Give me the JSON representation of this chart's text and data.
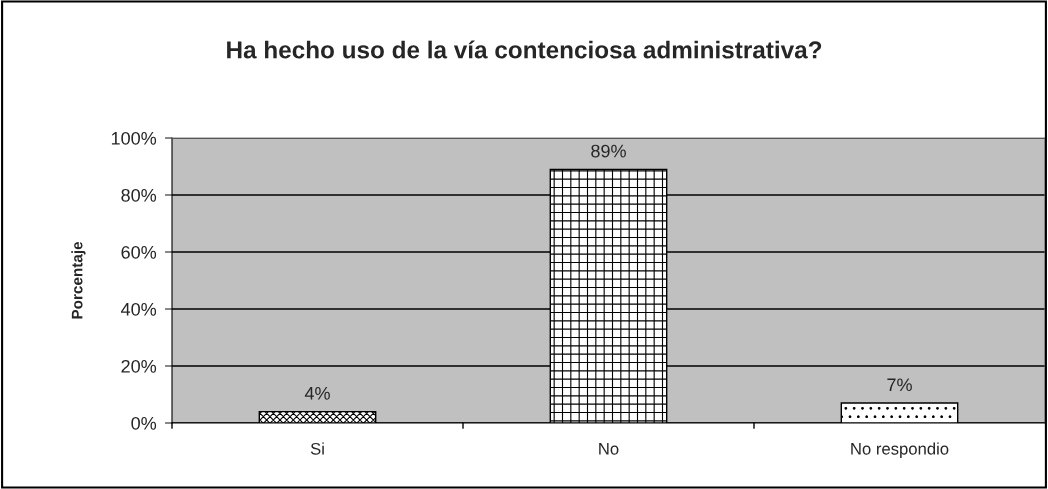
{
  "chart_data": {
    "type": "bar",
    "title": "Ha hecho uso de la vía contenciosa administrativa?",
    "ylabel": "Porcentaje",
    "categories": [
      "Si",
      "No",
      "No respondio"
    ],
    "values": [
      4,
      89,
      7
    ],
    "value_labels": [
      "4%",
      "89%",
      "7%"
    ],
    "colors": [
      "#000000",
      "#000000",
      "#000000"
    ],
    "ylim": [
      0,
      100
    ],
    "yticks": [
      {
        "value": 0,
        "label": "0%"
      },
      {
        "value": 20,
        "label": "20%"
      },
      {
        "value": 40,
        "label": "40%"
      },
      {
        "value": 60,
        "label": "60%"
      },
      {
        "value": 80,
        "label": "80%"
      },
      {
        "value": 100,
        "label": "100%"
      }
    ],
    "grid": "y",
    "legend": false
  }
}
